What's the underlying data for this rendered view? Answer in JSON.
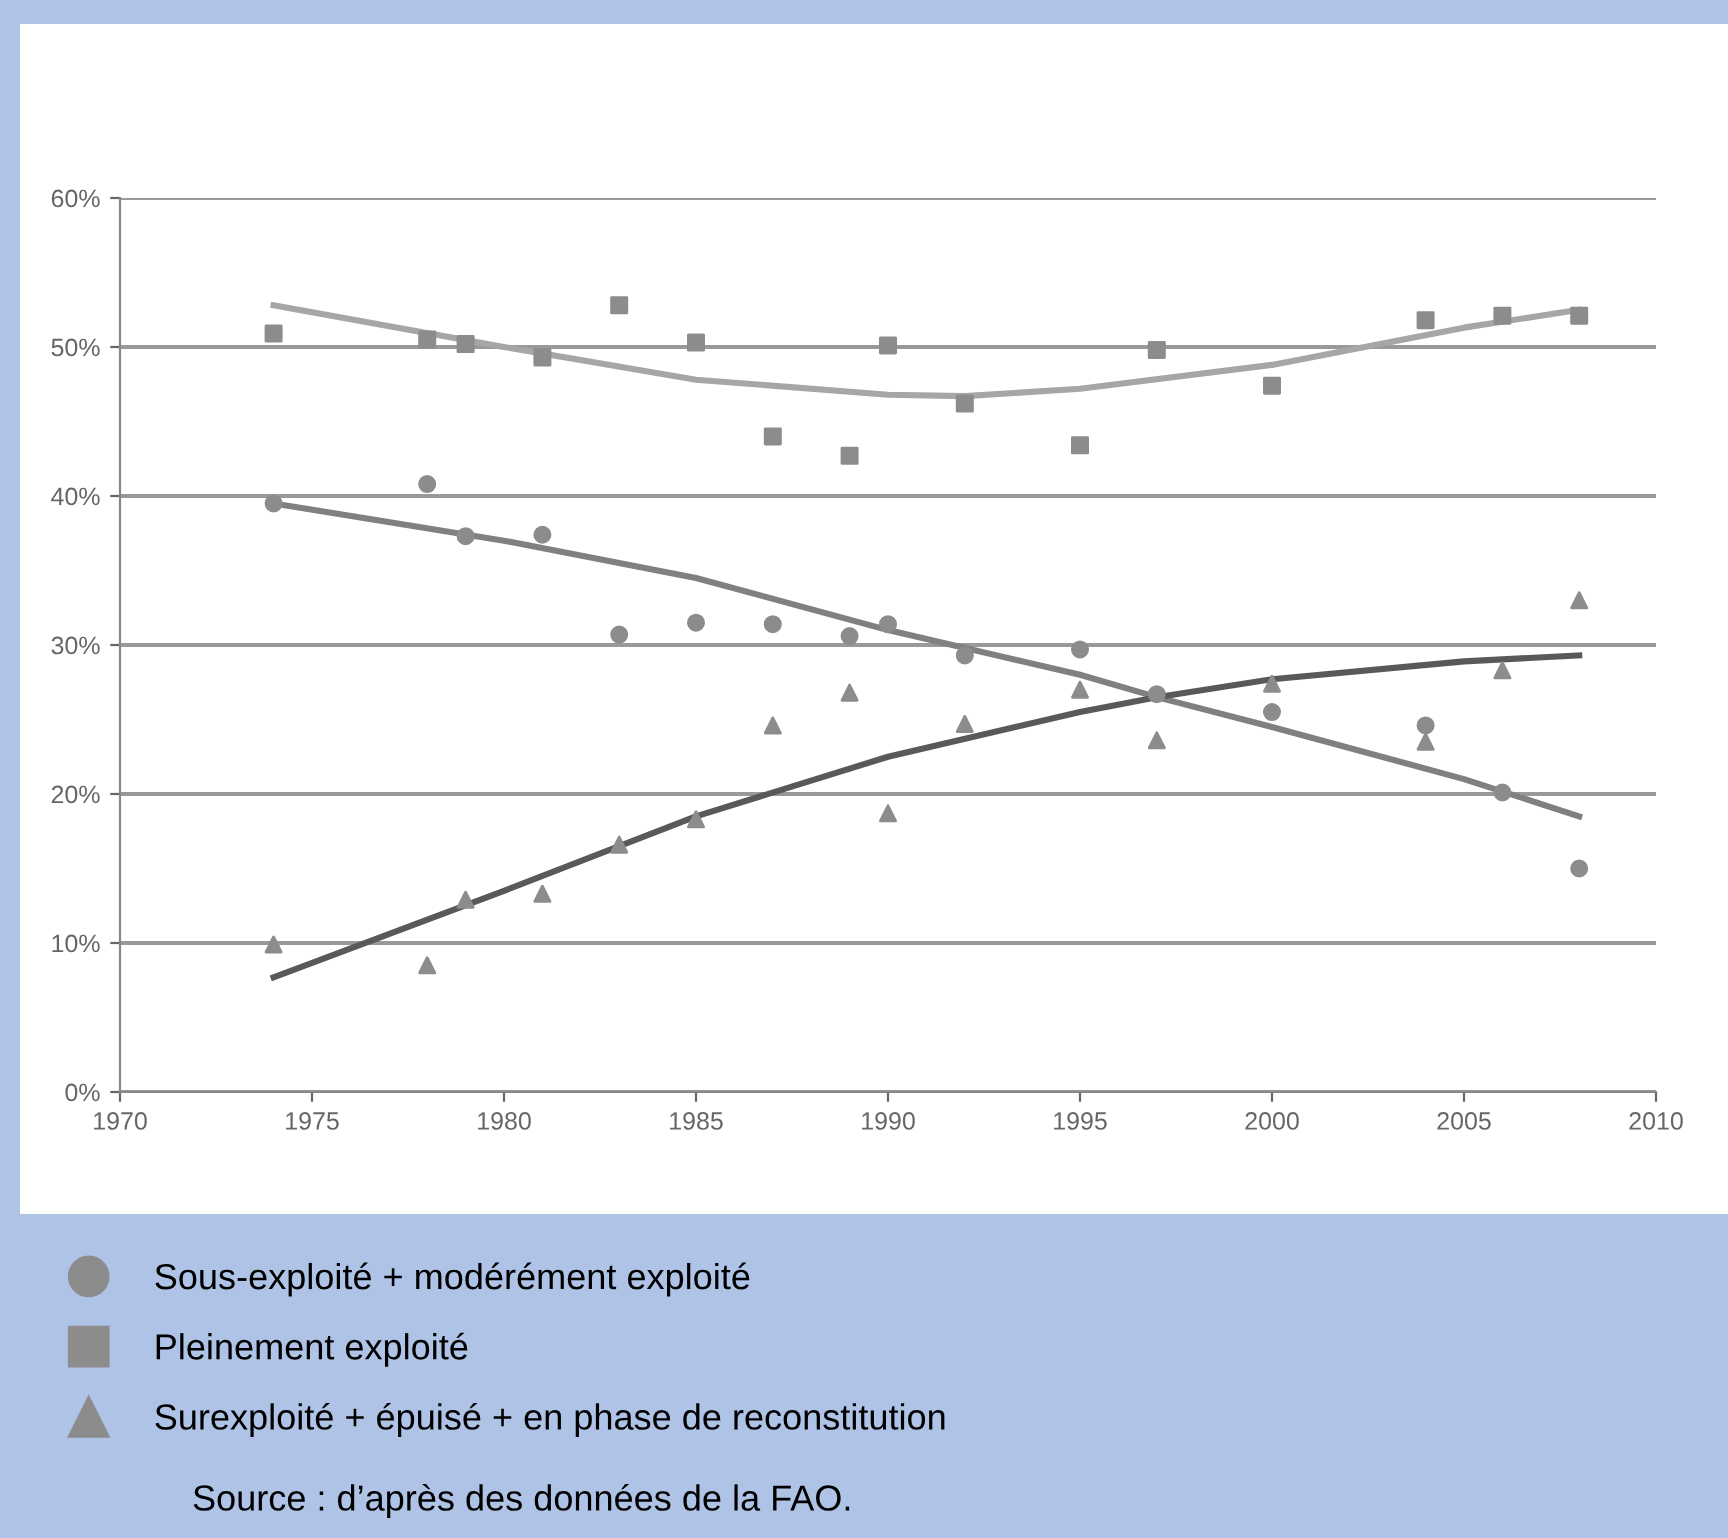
{
  "chart_data": {
    "type": "scatter",
    "xlim": [
      1970,
      2010
    ],
    "xticks": [
      1970,
      1975,
      1980,
      1985,
      1990,
      1995,
      2000,
      2005,
      2010
    ],
    "ylim": [
      0,
      60
    ],
    "yticks": [
      {
        "value": 0,
        "label": "0%"
      },
      {
        "value": 10,
        "label": "10%"
      },
      {
        "value": 20,
        "label": "20%"
      },
      {
        "value": 30,
        "label": "30%"
      },
      {
        "value": 40,
        "label": "40%"
      },
      {
        "value": 50,
        "label": "50%"
      },
      {
        "value": 60,
        "label": "60%"
      }
    ],
    "grid": "y",
    "legend": "bottom",
    "x": [
      1974,
      1978,
      1979,
      1981,
      1983,
      1985,
      1987,
      1989,
      1990,
      1992,
      1995,
      1997,
      2000,
      2004,
      2006,
      2008
    ],
    "series": [
      {
        "name": "Sous-exploité + modérément exploité",
        "marker": "circle",
        "color": "#8c8c8c",
        "values": [
          39.5,
          40.8,
          37.3,
          37.4,
          30.7,
          31.5,
          31.4,
          30.6,
          31.4,
          29.3,
          29.7,
          26.7,
          25.5,
          24.6,
          20.1,
          15.0
        ]
      },
      {
        "name": "Pleinement exploité",
        "marker": "square",
        "color": "#8c8c8c",
        "values": [
          50.9,
          50.5,
          50.2,
          49.3,
          52.8,
          50.3,
          44.0,
          42.7,
          50.1,
          46.2,
          43.4,
          49.8,
          47.4,
          51.8,
          52.1,
          52.1
        ]
      },
      {
        "name": "Surexploité + épuisé + en phase de reconstitution",
        "marker": "triangle",
        "color": "#8c8c8c",
        "values": [
          9.9,
          8.5,
          12.9,
          13.3,
          16.6,
          18.3,
          24.6,
          26.8,
          18.7,
          24.7,
          27.0,
          23.6,
          27.4,
          23.5,
          28.3,
          33.0
        ]
      },
      {
        "type": "line",
        "color": "#808080",
        "x": [
          1974,
          1980,
          1985,
          1990,
          1995,
          1997,
          2000,
          2005,
          2008
        ],
        "values": [
          39.5,
          37.0,
          34.5,
          31.0,
          28.0,
          26.5,
          24.5,
          21.0,
          18.5
        ]
      },
      {
        "type": "line",
        "color": "#a6a6a6",
        "x": [
          1974,
          1980,
          1985,
          1990,
          1992,
          1995,
          2000,
          2005,
          2008
        ],
        "values": [
          52.8,
          50.0,
          47.8,
          46.8,
          46.7,
          47.2,
          48.8,
          51.3,
          52.5
        ]
      },
      {
        "type": "line",
        "color": "#595959",
        "x": [
          1974,
          1980,
          1985,
          1990,
          1995,
          1997,
          2000,
          2005,
          2008
        ],
        "values": [
          7.7,
          13.5,
          18.5,
          22.5,
          25.5,
          26.5,
          27.7,
          28.9,
          29.3
        ]
      }
    ],
    "annotations": [
      "Source : d’après des données de la FAO."
    ]
  }
}
